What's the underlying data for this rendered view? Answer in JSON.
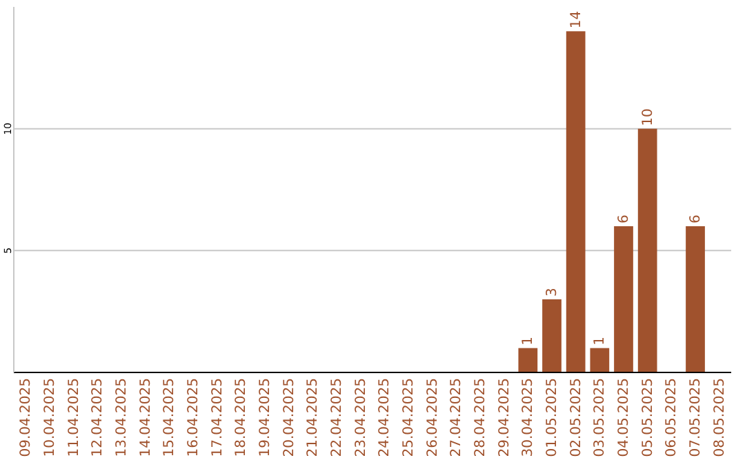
{
  "chart_data": {
    "type": "bar",
    "categories": [
      "09.04.2025",
      "10.04.2025",
      "11.04.2025",
      "12.04.2025",
      "13.04.2025",
      "14.04.2025",
      "15.04.2025",
      "16.04.2025",
      "17.04.2025",
      "18.04.2025",
      "19.04.2025",
      "20.04.2025",
      "21.04.2025",
      "22.04.2025",
      "23.04.2025",
      "24.04.2025",
      "25.04.2025",
      "26.04.2025",
      "27.04.2025",
      "28.04.2025",
      "29.04.2025",
      "30.04.2025",
      "01.05.2025",
      "02.05.2025",
      "03.05.2025",
      "04.05.2025",
      "05.05.2025",
      "06.05.2025",
      "07.05.2025",
      "08.05.2025"
    ],
    "values": [
      0,
      0,
      0,
      0,
      0,
      0,
      0,
      0,
      0,
      0,
      0,
      0,
      0,
      0,
      0,
      0,
      0,
      0,
      0,
      0,
      0,
      1,
      3,
      14,
      1,
      6,
      10,
      0,
      6,
      0
    ],
    "value_labels": [
      null,
      null,
      null,
      null,
      null,
      null,
      null,
      null,
      null,
      null,
      null,
      null,
      null,
      null,
      null,
      null,
      null,
      null,
      null,
      null,
      null,
      "1",
      "3",
      "14",
      "1",
      "6",
      "10",
      null,
      "6",
      null
    ],
    "color": "#a0522d",
    "ylim": [
      0,
      15
    ],
    "yticks": [
      5,
      10
    ],
    "grid": "y"
  }
}
